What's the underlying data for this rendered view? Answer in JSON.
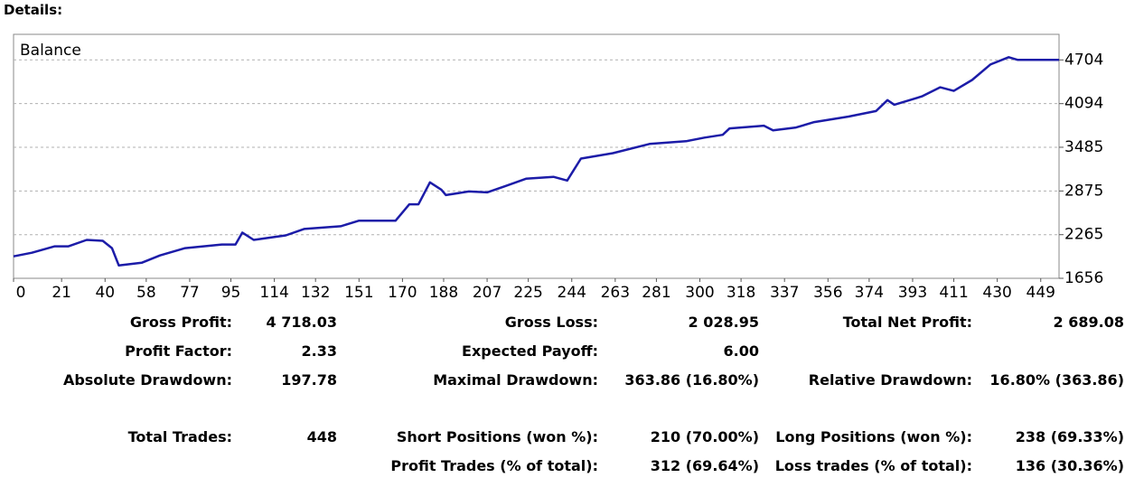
{
  "header": "Details:",
  "chart_data": {
    "type": "line",
    "title": "Balance",
    "x": [
      0,
      8,
      18,
      24,
      32,
      39,
      43,
      46,
      56,
      64,
      75,
      91,
      97,
      100,
      105,
      119,
      127,
      143,
      151,
      167,
      173,
      177,
      182,
      187,
      189,
      199,
      207,
      215,
      224,
      236,
      242,
      248,
      262,
      278,
      294,
      302,
      310,
      313,
      328,
      332,
      342,
      350,
      365,
      377,
      382,
      385,
      397,
      405,
      411,
      419,
      427,
      435,
      439,
      457
    ],
    "series": [
      {
        "name": "Balance",
        "color": "#1c1ca8",
        "values": [
          1962,
          2013,
          2102,
          2102,
          2192,
          2179,
          2077,
          1835,
          1873,
          1975,
          2077,
          2128,
          2128,
          2294,
          2192,
          2255,
          2345,
          2383,
          2460,
          2460,
          2689,
          2689,
          2995,
          2893,
          2817,
          2868,
          2855,
          2944,
          3046,
          3072,
          3021,
          3327,
          3403,
          3531,
          3569,
          3620,
          3659,
          3748,
          3786,
          3722,
          3761,
          3837,
          3914,
          3990,
          4143,
          4079,
          4194,
          4322,
          4271,
          4424,
          4640,
          4742,
          4704,
          4704
        ]
      }
    ],
    "xlim": [
      0,
      457
    ],
    "xticks": [
      0,
      21,
      40,
      58,
      77,
      95,
      114,
      132,
      151,
      170,
      188,
      207,
      225,
      244,
      263,
      281,
      300,
      318,
      337,
      356,
      374,
      393,
      411,
      430,
      449
    ],
    "ylim": [
      1656,
      5061
    ],
    "yticks": [
      1656,
      2265,
      2875,
      3485,
      4094,
      4704
    ],
    "grid": true
  },
  "stats": {
    "columns": [
      [
        {
          "label": "Gross Profit:",
          "value": "4 718.03"
        },
        {
          "label": "Profit Factor:",
          "value": "2.33"
        },
        {
          "label": "Absolute Drawdown:",
          "value": "197.78"
        },
        {
          "label": "Total Trades:",
          "value": "448"
        }
      ],
      [
        {
          "label": "Gross Loss:",
          "value": "2 028.95"
        },
        {
          "label": "Expected Payoff:",
          "value": "6.00"
        },
        {
          "label": "Maximal Drawdown:",
          "value": "363.86 (16.80%)"
        },
        {
          "label": "Short Positions (won %):",
          "value": "210 (70.00%)"
        },
        {
          "label": "Profit Trades (% of total):",
          "value": "312 (69.64%)"
        }
      ],
      [
        {
          "label": "Total Net Profit:",
          "value": "2 689.08"
        },
        {
          "label": "",
          "value": ""
        },
        {
          "label": "Relative Drawdown:",
          "value": "16.80% (363.86)"
        },
        {
          "label": "Long Positions (won %):",
          "value": "238 (69.33%)"
        },
        {
          "label": "Loss trades (% of total):",
          "value": "136 (30.36%)"
        }
      ]
    ]
  }
}
